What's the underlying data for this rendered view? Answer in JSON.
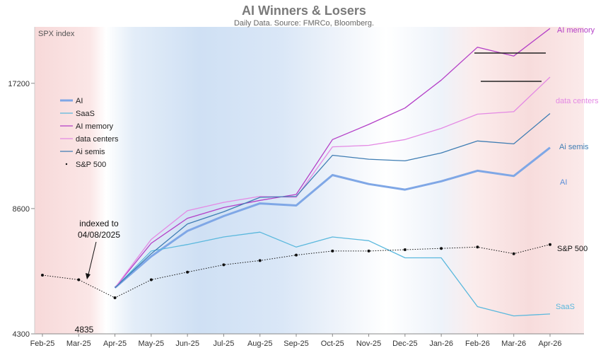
{
  "chart_data": {
    "type": "line",
    "title": "AI Winners & Losers",
    "subtitle": "Daily Data. Source: FMRCo, Bloomberg.",
    "ylabel": "SPX index",
    "y_scale": "log",
    "ylim": [
      4300,
      23500
    ],
    "yticks": [
      4300,
      8600,
      17200
    ],
    "x_tick_labels": [
      "Feb-25",
      "Mar-25",
      "Apr-25",
      "May-25",
      "Jun-25",
      "Jul-25",
      "Aug-25",
      "Sep-25",
      "Oct-25",
      "Nov-25",
      "Dec-25",
      "Jan-26",
      "Feb-26",
      "Mar-26",
      "Apr-26"
    ],
    "x": [
      "Feb-25",
      "Mar-25",
      "Apr-25",
      "May-25",
      "Jun-25",
      "Jul-25",
      "Aug-25",
      "Sep-25",
      "Oct-25",
      "Nov-25",
      "Dec-25",
      "Jan-26",
      "Feb-26",
      "Mar-26",
      "Apr-26"
    ],
    "series": [
      {
        "name": "AI",
        "color": "#7fa7e6",
        "values": [
          null,
          null,
          5550,
          6600,
          7600,
          8250,
          8850,
          8750,
          10350,
          9850,
          9550,
          10000,
          10600,
          10300,
          12050
        ]
      },
      {
        "name": "SaaS",
        "color": "#5ab8dd",
        "values": [
          null,
          null,
          5550,
          6800,
          7050,
          7350,
          7550,
          6950,
          7350,
          7200,
          6550,
          6550,
          5000,
          4750,
          4800
        ]
      },
      {
        "name": "AI memory",
        "color": "#b43fc7",
        "values": [
          null,
          null,
          5550,
          7100,
          8150,
          8650,
          9000,
          9300,
          12600,
          13700,
          15000,
          17500,
          21000,
          20000,
          23300
        ]
      },
      {
        "name": "data centers",
        "color": "#e489e4",
        "values": [
          null,
          null,
          5550,
          7250,
          8500,
          8900,
          9200,
          9150,
          12100,
          12200,
          12600,
          13400,
          14500,
          14700,
          17800
        ]
      },
      {
        "name": "Ai semis",
        "color": "#3f7db3",
        "values": [
          null,
          null,
          5550,
          6700,
          7900,
          8450,
          9150,
          9200,
          11550,
          11300,
          11200,
          11700,
          12500,
          12300,
          14550
        ]
      },
      {
        "name": "S&P 500",
        "color": "#111111",
        "values": [
          5950,
          5800,
          5250,
          5800,
          6050,
          6300,
          6450,
          6650,
          6800,
          6800,
          6850,
          6900,
          6950,
          6700,
          7050
        ]
      }
    ],
    "legend": {
      "position": "top-left",
      "entries": [
        "AI",
        "SaaS",
        "AI memory",
        "data centers",
        "Ai semis",
        "S&P 500"
      ]
    },
    "end_labels": [
      "AI memory",
      "data centers",
      "Ai semis",
      "AI",
      "S&P 500",
      "SaaS"
    ],
    "annotations": [
      {
        "text": "indexed to",
        "text2": "04/08/2025",
        "x": "Apr-25"
      },
      {
        "text": "4835",
        "x": "Apr-25"
      }
    ],
    "background_bands": {
      "red": [
        "Feb-25",
        "Mar-25",
        "Jan-26",
        "Feb-26",
        "Mar-26"
      ],
      "blue": [
        "May-25",
        "Jun-25",
        "Jul-25",
        "Aug-25",
        "Sep-25"
      ]
    },
    "grid": false
  }
}
